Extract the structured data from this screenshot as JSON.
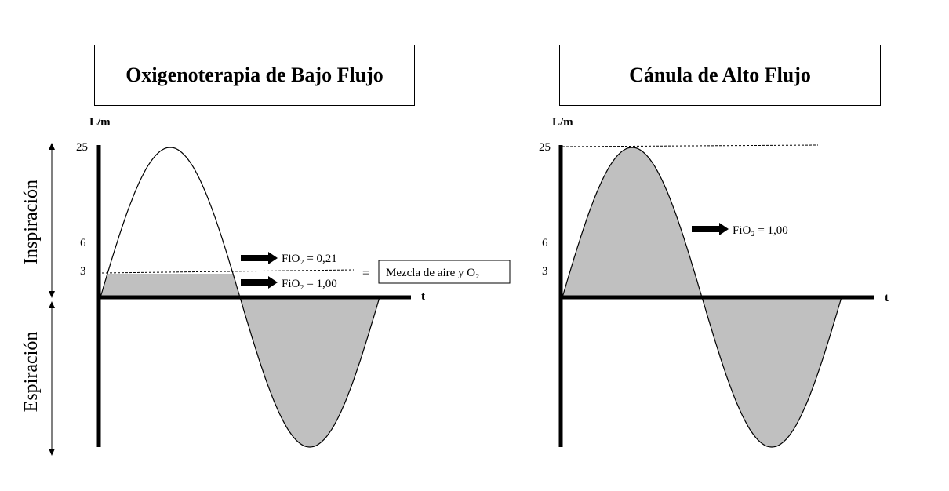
{
  "panels": {
    "left": {
      "title": "Oxigenoterapia de Bajo Flujo",
      "y_unit": "L/m",
      "ticks": [
        "25",
        "6",
        "3"
      ],
      "x_label": "t",
      "arrow_1": "FiO₂ = 0,21",
      "arrow_2": "FiO₂ = 1,00",
      "equals": "=",
      "result_box": "Mezcla de aire y O₂"
    },
    "right": {
      "title": "Cánula de Alto Flujo",
      "y_unit": "L/m",
      "ticks": [
        "25",
        "6",
        "3"
      ],
      "x_label": "t",
      "arrow_1": "FiO₂ = 1,00"
    }
  },
  "side_labels": {
    "inspiration": "Inspiración",
    "expiration": "Espiración"
  },
  "colors": {
    "fill": "#c0c0c0",
    "line": "#000000",
    "background": "#ffffff"
  }
}
